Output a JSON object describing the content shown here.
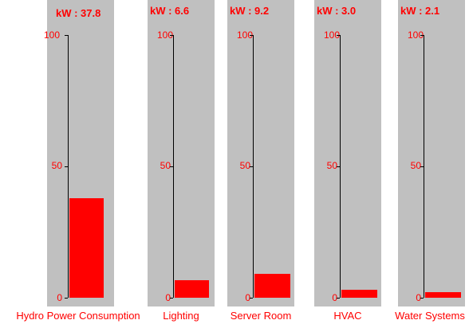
{
  "colors": {
    "panel": "#c0c0c0",
    "bar": "#ff0000",
    "text": "#ff0000",
    "axis": "#000000"
  },
  "scale": {
    "min": 0,
    "max": 100,
    "ticks": [
      "100",
      "50",
      "0"
    ]
  },
  "gauges": [
    {
      "label": "Hydro Power Consumption",
      "readout": "kW : 37.8",
      "value": 37.8
    },
    {
      "label": "Lighting",
      "readout": "kW : 6.6",
      "value": 6.6
    },
    {
      "label": "Server Room",
      "readout": "kW : 9.2",
      "value": 9.2
    },
    {
      "label": "HVAC",
      "readout": "kW : 3.0",
      "value": 3.0
    },
    {
      "label": "Water Systems",
      "readout": "kW : 2.1",
      "value": 2.1
    }
  ]
}
